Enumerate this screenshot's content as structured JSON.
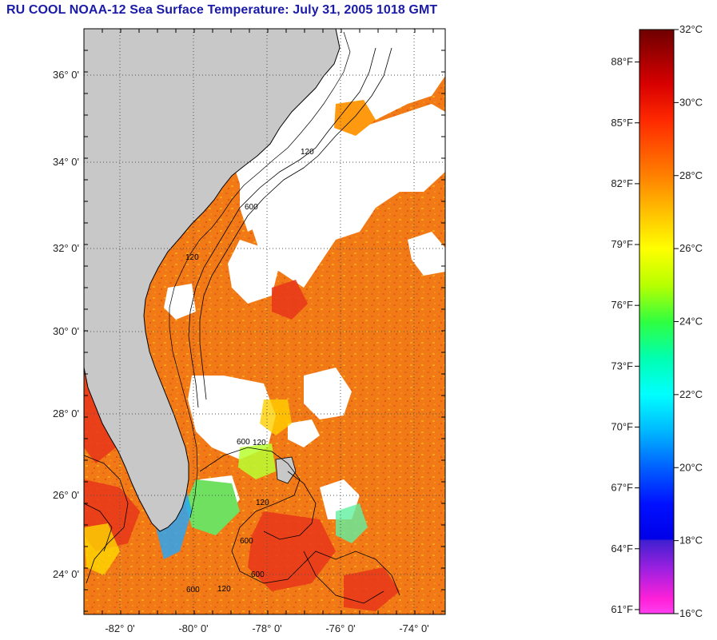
{
  "title": "RU COOL  NOAA-12  Sea Surface Temperature:  July 31, 2005 1018 GMT",
  "map": {
    "lat_labels": [
      "36° 0'",
      "34° 0'",
      "32° 0'",
      "30° 0'",
      "28° 0'",
      "26° 0'",
      "24° 0'"
    ],
    "lon_labels": [
      "-82° 0'",
      "-80° 0'",
      "-78° 0'",
      "-76° 0'",
      "-74° 0'"
    ],
    "lat_values": [
      36,
      34,
      32,
      30,
      28,
      26,
      24
    ],
    "lon_values": [
      -82,
      -80,
      -78,
      -76,
      -74
    ],
    "lat_range": [
      23,
      37
    ],
    "lon_range": [
      -83,
      -73
    ],
    "land_color": "#c8c8c8",
    "cloud_color": "#ffffff",
    "water_color": "#f07a14",
    "contour_labels": [
      "120",
      "600",
      "120",
      "600",
      "120",
      "120",
      "600",
      "600",
      "120",
      "600"
    ],
    "grid": "dotted"
  },
  "colorbar": {
    "celsius_labels": [
      "32°C",
      "30°C",
      "28°C",
      "26°C",
      "24°C",
      "22°C",
      "20°C",
      "18°C",
      "16°C"
    ],
    "fahrenheit_labels": [
      "88°F",
      "85°F",
      "82°F",
      "79°F",
      "76°F",
      "73°F",
      "70°F",
      "67°F",
      "64°F",
      "61°F"
    ],
    "celsius_values": [
      32,
      30,
      28,
      26,
      24,
      22,
      20,
      18,
      16
    ],
    "fahrenheit_values": [
      88,
      85,
      82,
      79,
      76,
      73,
      70,
      67,
      64,
      61
    ],
    "range_c": [
      16,
      32
    ],
    "stops": [
      {
        "c": 32,
        "color": "#6e0000"
      },
      {
        "c": 30.5,
        "color": "#d80000"
      },
      {
        "c": 29.5,
        "color": "#ff2a00"
      },
      {
        "c": 28,
        "color": "#ff8000"
      },
      {
        "c": 27,
        "color": "#ffc000"
      },
      {
        "c": 26,
        "color": "#ffff00"
      },
      {
        "c": 25,
        "color": "#b8ff00"
      },
      {
        "c": 24,
        "color": "#30ff40"
      },
      {
        "c": 23,
        "color": "#00ffb0"
      },
      {
        "c": 22,
        "color": "#00ffff"
      },
      {
        "c": 21,
        "color": "#00b8ff"
      },
      {
        "c": 20,
        "color": "#0060ff"
      },
      {
        "c": 19,
        "color": "#0010ff"
      },
      {
        "c": 18.05,
        "color": "#0000e8"
      },
      {
        "c": 18,
        "color": "#4020d0"
      },
      {
        "c": 17.2,
        "color": "#a020e0"
      },
      {
        "c": 16.4,
        "color": "#ff20d8"
      },
      {
        "c": 16,
        "color": "#ff40f0"
      }
    ]
  }
}
